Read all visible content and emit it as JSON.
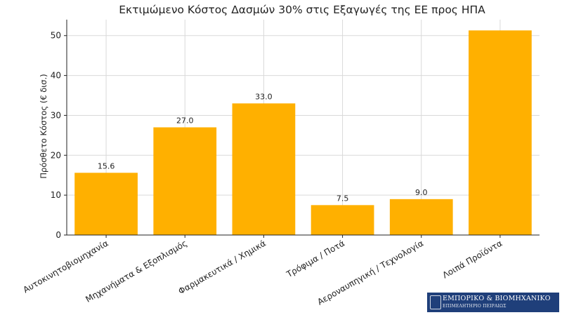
{
  "chart_data": {
    "type": "bar",
    "title": "Εκτιμώμενο Κόστος Δασμών 30% στις Εξαγωγές της ΕΕ προς ΗΠΑ",
    "xlabel": "",
    "ylabel": "Πρόσθετο Κόστος (€ δισ.)",
    "categories": [
      "Αυτοκινητοβιομηχανία",
      "Μηχανήματα & Εξοπλισμός",
      "Φαρμακευτικά / Χημικά",
      "Τρόφιμα / Ποτά",
      "Αεροναυπηγική / Τεχνολογία",
      "Λοιπά Προϊόντα"
    ],
    "values": [
      15.6,
      27.0,
      33.0,
      7.5,
      9.0,
      51.3
    ],
    "data_labels": [
      "15.6",
      "27.0",
      "33.0",
      "7.5",
      "9.0",
      ""
    ],
    "ylim": [
      0,
      54
    ],
    "yticks": [
      0,
      10,
      20,
      30,
      40,
      50
    ],
    "grid": true,
    "bar_color": "#ffb000",
    "grid_color": "#d9d9d9"
  },
  "logo": {
    "line1": "ΕΜΠΟΡΙΚΟ & ΒΙΟΜΗΧΑΝΙΚΟ",
    "line2": "ΕΠΙΜΕΛΗΤΗΡΙΟ ΠΕΙΡΑΙΩΣ",
    "color": "#1f3f7a"
  }
}
